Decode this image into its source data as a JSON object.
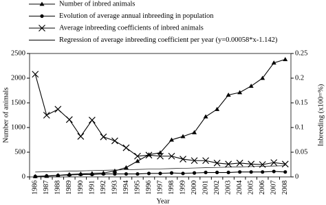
{
  "chart_data": {
    "type": "line",
    "categories": [
      "1986",
      "1987",
      "1988",
      "1989",
      "1990",
      "1991",
      "1992",
      "1993",
      "1994",
      "1995",
      "1996",
      "1997",
      "1998",
      "1999",
      "2000",
      "2001",
      "2002",
      "2003",
      "2004",
      "2005",
      "2006",
      "2007",
      "2008"
    ],
    "xlabel": "Year",
    "ylabel": "Number of animals",
    "y2label": "Inbreeding (x100=%)",
    "ylim": [
      0,
      2500
    ],
    "yticks": [
      0,
      500,
      1000,
      1500,
      2000,
      2500
    ],
    "y2lim": [
      0,
      0.25
    ],
    "y2ticks": [
      0,
      0.05,
      0.1,
      0.15,
      0.2,
      0.25
    ],
    "series": [
      {
        "name": "Number of inbred animals",
        "color": "#000000",
        "marker": "triangle",
        "values": [
          10,
          15,
          30,
          50,
          60,
          70,
          80,
          120,
          190,
          320,
          450,
          490,
          750,
          820,
          900,
          1220,
          1370,
          1660,
          1710,
          1840,
          2000,
          2310,
          2380
        ]
      },
      {
        "name": "Evolution of average annual inbreeding in population",
        "color": "#000000",
        "marker": "circle",
        "axis": "y2",
        "values": [
          0.001,
          0.002,
          0.003,
          0.004,
          0.005,
          0.005,
          0.006,
          0.006,
          0.006,
          0.006,
          0.007,
          0.007,
          0.008,
          0.007,
          0.008,
          0.009,
          0.009,
          0.009,
          0.01,
          0.01,
          0.01,
          0.011,
          0.01
        ]
      },
      {
        "name": "Average inbreeding coefficients of inbred animals",
        "color": "#000000",
        "marker": "x",
        "axis": "y2",
        "values": [
          0.208,
          0.125,
          0.137,
          0.116,
          0.082,
          0.115,
          0.081,
          0.073,
          0.059,
          0.042,
          0.044,
          0.042,
          0.042,
          0.036,
          0.033,
          0.033,
          0.028,
          0.026,
          0.028,
          0.026,
          0.025,
          0.029,
          0.026
        ]
      },
      {
        "name": "Regression of average inbreeding coefficient per year (y=0.00058*x-1.142)",
        "color": "#000000",
        "marker": "none",
        "axis": "y2",
        "values": [
          0.00988,
          0.01046,
          0.01104,
          0.01162,
          0.0122,
          0.01278,
          0.01336,
          0.01394,
          0.01452,
          0.0151,
          0.01568,
          0.01626,
          0.01684,
          0.01742,
          0.018,
          0.01858,
          0.01916,
          0.01974,
          0.02032,
          0.0209,
          0.02148,
          0.02206,
          0.02264
        ]
      }
    ]
  }
}
